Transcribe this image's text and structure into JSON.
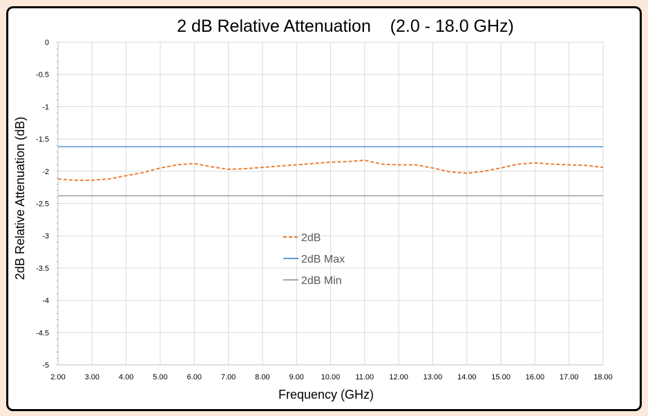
{
  "chart_data": {
    "type": "line",
    "title": "2 dB Relative Attenuation    (2.0 - 18.0 GHz)",
    "xlabel": "Frequency (GHz)",
    "ylabel": "2dB Relative Attenuation (dB)",
    "xlim": [
      2.0,
      18.0
    ],
    "ylim": [
      -5,
      0
    ],
    "x_ticks": [
      "2.00",
      "3.00",
      "4.00",
      "5.00",
      "6.00",
      "7.00",
      "8.00",
      "9.00",
      "10.00",
      "11.00",
      "12.00",
      "13.00",
      "14.00",
      "15.00",
      "16.00",
      "17.00",
      "18.00"
    ],
    "y_ticks": [
      "0",
      "-0.5",
      "-1",
      "-1.5",
      "-2",
      "-2.5",
      "-3",
      "-3.5",
      "-4",
      "-4.5",
      "-5"
    ],
    "grid": true,
    "legend_position": "center",
    "series": [
      {
        "name": "2dB",
        "color": "#ed7d31",
        "dash": true,
        "x": [
          2.0,
          2.5,
          3.0,
          3.5,
          4.0,
          4.5,
          5.0,
          5.5,
          6.0,
          6.5,
          7.0,
          7.5,
          8.0,
          8.5,
          9.0,
          9.5,
          10.0,
          10.5,
          11.0,
          11.5,
          12.0,
          12.5,
          13.0,
          13.5,
          14.0,
          14.5,
          15.0,
          15.5,
          16.0,
          16.5,
          17.0,
          17.5,
          18.0
        ],
        "y": [
          -2.12,
          -2.14,
          -2.14,
          -2.12,
          -2.07,
          -2.02,
          -1.95,
          -1.9,
          -1.88,
          -1.93,
          -1.97,
          -1.96,
          -1.94,
          -1.92,
          -1.9,
          -1.88,
          -1.86,
          -1.85,
          -1.83,
          -1.89,
          -1.9,
          -1.9,
          -1.95,
          -2.01,
          -2.03,
          -2.0,
          -1.95,
          -1.89,
          -1.87,
          -1.89,
          -1.9,
          -1.91,
          -1.94
        ]
      },
      {
        "name": "2dB Max",
        "color": "#5b9bd5",
        "dash": false,
        "x": [
          2.0,
          18.0
        ],
        "y": [
          -1.62,
          -1.62
        ]
      },
      {
        "name": "2dB Min",
        "color": "#a5a5a5",
        "dash": false,
        "x": [
          2.0,
          18.0
        ],
        "y": [
          -2.38,
          -2.38
        ]
      }
    ]
  }
}
